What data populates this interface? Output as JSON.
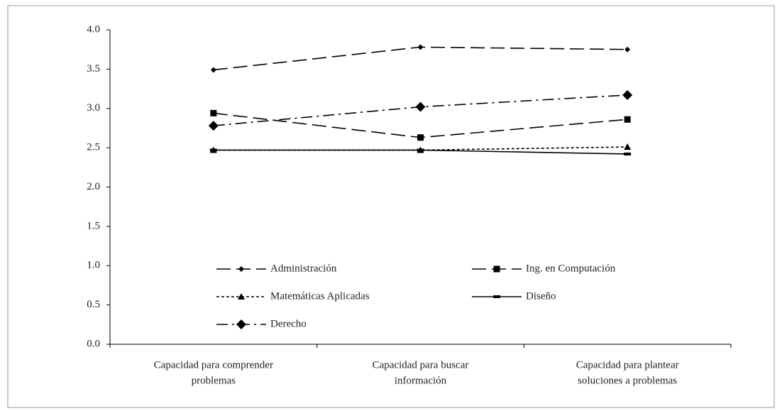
{
  "chart_data": {
    "type": "line",
    "categories": [
      [
        "Capacidad para comprender",
        "problemas"
      ],
      [
        "Capacidad para buscar",
        "información"
      ],
      [
        "Capacidad para plantear",
        "soluciones a problemas"
      ]
    ],
    "series": [
      {
        "name": "Administración",
        "color": "#000000",
        "line_style": "long-dash",
        "marker": "diamond",
        "values": [
          3.49,
          3.78,
          3.75
        ]
      },
      {
        "name": "Ing. en Computación",
        "color": "#000000",
        "line_style": "long-dash",
        "marker": "square",
        "values": [
          2.94,
          2.63,
          2.86
        ]
      },
      {
        "name": "Matemáticas Aplicadas",
        "color": "#000000",
        "line_style": "short-dash",
        "marker": "triangle",
        "values": [
          2.47,
          2.47,
          2.51
        ]
      },
      {
        "name": "Diseño",
        "color": "#000000",
        "line_style": "solid",
        "marker": "dash",
        "values": [
          2.47,
          2.47,
          2.42
        ]
      },
      {
        "name": "Derecho",
        "color": "#000000",
        "line_style": "dash-dot",
        "marker": "big-diamond",
        "values": [
          2.78,
          3.02,
          3.17
        ]
      }
    ],
    "ylim": [
      0,
      4
    ],
    "yticks": [
      {
        "value": 0,
        "label": "0.0"
      },
      0.5,
      {
        "value": 1,
        "label": "1.0"
      },
      1.5,
      {
        "value": 2,
        "label": "2.0"
      },
      2.5,
      {
        "value": 3,
        "label": "3.0"
      },
      3.5,
      {
        "value": 4,
        "label": "4.0"
      }
    ],
    "grid": false
  }
}
